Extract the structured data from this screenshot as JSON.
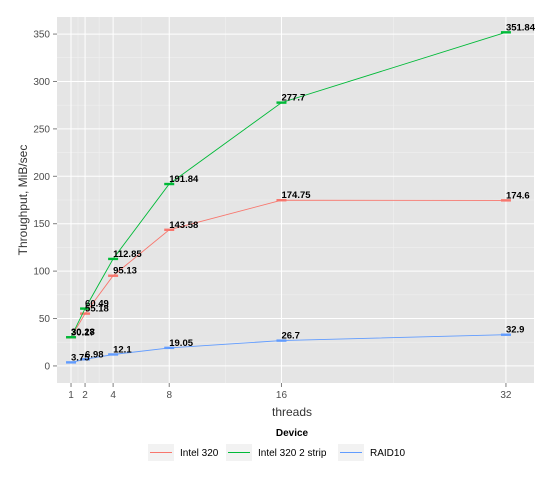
{
  "chart_data": {
    "type": "line",
    "xlabel": "threads",
    "ylabel": "Throughput, MiB/sec",
    "x": [
      1,
      2,
      4,
      8,
      16,
      32
    ],
    "x_ticks": [
      1,
      2,
      4,
      8,
      16,
      32
    ],
    "y_ticks": [
      0,
      50,
      100,
      150,
      200,
      250,
      300,
      350
    ],
    "xlim": [
      0,
      34
    ],
    "ylim": [
      -18,
      368
    ],
    "grid": true,
    "legend": {
      "title": "Device",
      "position": "bottom"
    },
    "series": [
      {
        "name": "Intel 320",
        "color": "#F8766D",
        "values": [
          30.17,
          55.18,
          95.13,
          143.58,
          174.75,
          174.6
        ],
        "labels": [
          "30.17",
          "55.18",
          "95.13",
          "143.58",
          "174.75",
          "174.6"
        ]
      },
      {
        "name": "Intel 320 2 strip",
        "color": "#00BA38",
        "values": [
          30.28,
          60.49,
          112.85,
          191.84,
          277.7,
          351.84
        ],
        "labels": [
          "30.28",
          "60.49",
          "112.85",
          "191.84",
          "277.7",
          "351.84"
        ]
      },
      {
        "name": "RAID10",
        "color": "#619CFF",
        "values": [
          3.75,
          6.98,
          12.1,
          19.05,
          26.7,
          32.9
        ],
        "labels": [
          "3.75",
          "6.98",
          "12.1",
          "19.05",
          "26.7",
          "32.9"
        ]
      }
    ]
  }
}
